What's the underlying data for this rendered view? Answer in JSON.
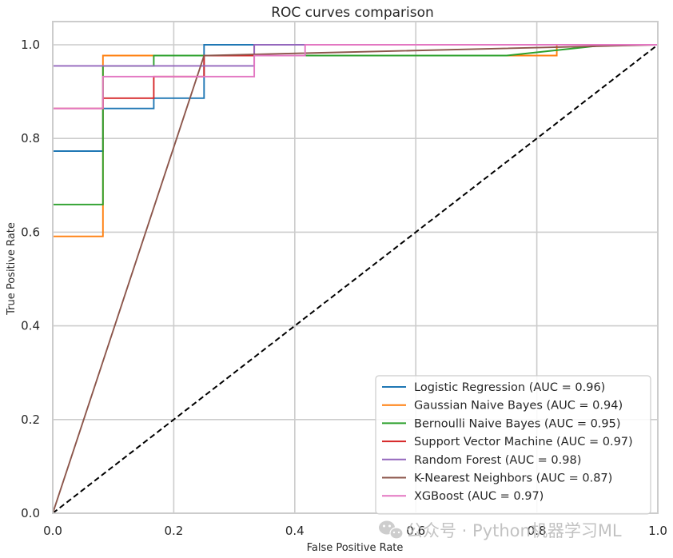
{
  "chart_data": {
    "type": "line",
    "title": "ROC curves comparison",
    "xlabel": "False Positive Rate",
    "ylabel": "True Positive Rate",
    "xlim": [
      0.0,
      1.0
    ],
    "ylim": [
      0.0,
      1.0
    ],
    "xticks": [
      "0.0",
      "0.2",
      "0.4",
      "0.6",
      "0.8",
      "1.0"
    ],
    "yticks": [
      "0.0",
      "0.2",
      "0.4",
      "0.6",
      "0.8",
      "1.0"
    ],
    "grid": true,
    "legend_position": "lower-right",
    "reference_line": {
      "x": [
        0,
        1
      ],
      "y": [
        0,
        1
      ],
      "style": "dashed",
      "color": "#000000"
    },
    "series": [
      {
        "name": "Logistic Regression (AUC = 0.96)",
        "color": "#1f77b4",
        "x": [
          0.0,
          0.0,
          0.0,
          0.083,
          0.083,
          0.167,
          0.167,
          0.25,
          0.25,
          0.333,
          0.333,
          1.0
        ],
        "y": [
          0.0,
          0.773,
          0.773,
          0.773,
          0.864,
          0.864,
          0.886,
          0.886,
          1.0,
          1.0,
          1.0,
          1.0
        ]
      },
      {
        "name": "Gaussian Naive Bayes (AUC = 0.94)",
        "color": "#ff7f0e",
        "x": [
          0.0,
          0.0,
          0.083,
          0.083,
          0.833,
          0.833,
          1.0
        ],
        "y": [
          0.0,
          0.591,
          0.591,
          0.977,
          0.977,
          1.0,
          1.0
        ]
      },
      {
        "name": "Bernoulli Naive Bayes (AUC = 0.95)",
        "color": "#2ca02c",
        "x": [
          0.0,
          0.0,
          0.083,
          0.083,
          0.167,
          0.167,
          0.75,
          0.917,
          1.0
        ],
        "y": [
          0.0,
          0.659,
          0.659,
          0.955,
          0.955,
          0.977,
          0.977,
          1.0,
          1.0
        ]
      },
      {
        "name": "Support Vector Machine (AUC = 0.97)",
        "color": "#d62728",
        "x": [
          0.0,
          0.0,
          0.083,
          0.083,
          0.167,
          0.167,
          0.25,
          0.25,
          0.333,
          0.333,
          1.0
        ],
        "y": [
          0.0,
          0.864,
          0.864,
          0.886,
          0.886,
          0.932,
          0.932,
          0.977,
          0.977,
          1.0,
          1.0
        ]
      },
      {
        "name": "Random Forest (AUC = 0.98)",
        "color": "#9467bd",
        "x": [
          0.0,
          0.0,
          0.333,
          0.333,
          0.417,
          0.417,
          1.0
        ],
        "y": [
          0.0,
          0.955,
          0.955,
          1.0,
          1.0,
          1.0,
          1.0
        ]
      },
      {
        "name": "K-Nearest Neighbors (AUC = 0.87)",
        "color": "#8c564b",
        "x": [
          0.0,
          0.25,
          1.0
        ],
        "y": [
          0.0,
          0.977,
          1.0
        ]
      },
      {
        "name": "XGBoost (AUC = 0.97)",
        "color": "#e377c2",
        "x": [
          0.0,
          0.0,
          0.083,
          0.083,
          0.333,
          0.333,
          0.417,
          0.417,
          1.0
        ],
        "y": [
          0.0,
          0.864,
          0.864,
          0.932,
          0.932,
          0.977,
          0.977,
          1.0,
          1.0
        ]
      }
    ]
  },
  "watermark": {
    "text": "公众号 · Python机器学习ML",
    "icon": "wechat-icon"
  }
}
